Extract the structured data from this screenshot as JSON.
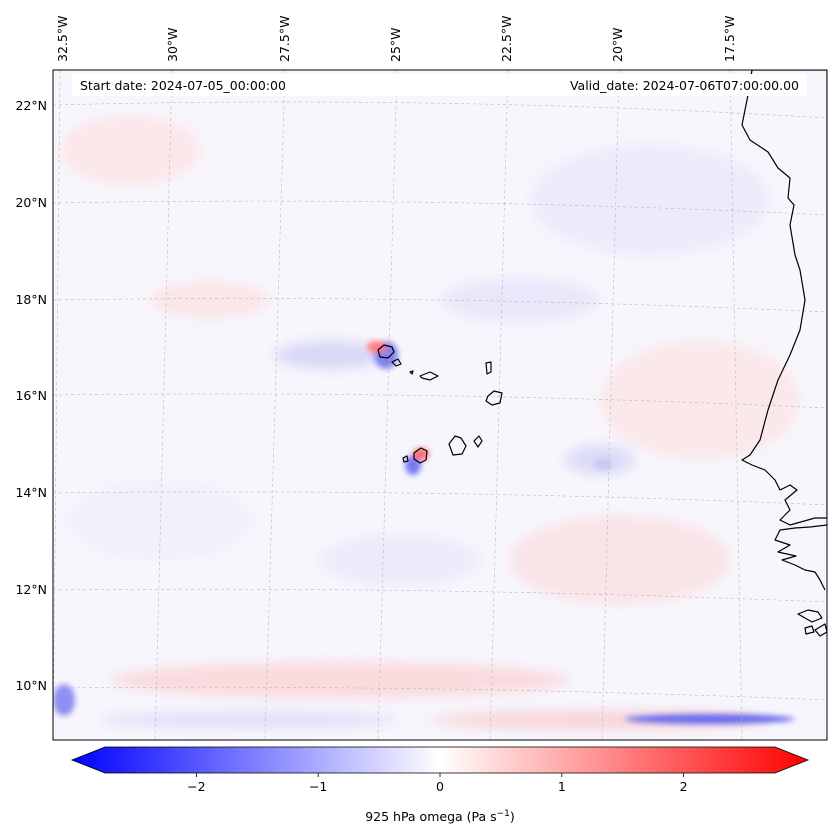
{
  "map": {
    "start_label": "Start date: 2024-07-05_00:00:00",
    "valid_label": "Valid_date: 2024-07-06T07:00:00.00",
    "lon_labels": [
      "32.5°W",
      "30°W",
      "27.5°W",
      "25°W",
      "22.5°W",
      "20°W",
      "17.5°W"
    ],
    "lat_labels": [
      "22°N",
      "20°N",
      "18°N",
      "16°N",
      "14°N",
      "12°N",
      "10°N"
    ]
  },
  "colorbar": {
    "label_text": "925 hPa omega (Pa s",
    "label_sup": "−1",
    "label_close": ")",
    "tick_values": [
      -2,
      -1,
      0,
      1,
      2
    ],
    "tick_labels": [
      "−2",
      "−1",
      "0",
      "1",
      "2"
    ],
    "range": [
      -2.75,
      2.75
    ],
    "extend": "both",
    "colormap": "bwr"
  },
  "colors": {
    "negative": "#0000ff",
    "zero": "#ffffff",
    "positive": "#ff0000",
    "land": "#ffffff",
    "coastline": "#000000"
  }
}
